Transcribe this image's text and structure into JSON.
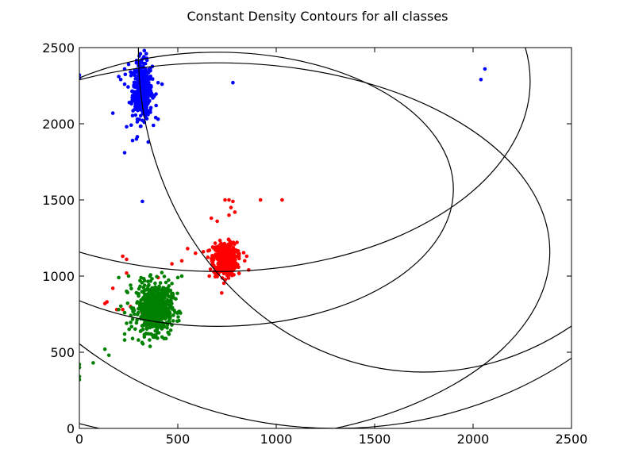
{
  "chart_data": {
    "type": "scatter",
    "title": "Constant Density Contours for all classes",
    "xlabel": "",
    "ylabel": "",
    "xlim": [
      0,
      2500
    ],
    "ylim": [
      0,
      2500
    ],
    "xticks": [
      0,
      500,
      1000,
      1500,
      2000,
      2500
    ],
    "yticks": [
      0,
      500,
      1000,
      1500,
      2000,
      2500
    ],
    "grid": false,
    "legend": "none",
    "series": [
      {
        "color": "#0000ff",
        "cluster": {
          "cx": 320,
          "cy": 2220,
          "sx": 25,
          "sy": 90,
          "n": 450
        },
        "points": [
          [
            0,
            2300
          ],
          [
            0,
            2320
          ],
          [
            170,
            2070
          ],
          [
            230,
            1810
          ],
          [
            240,
            1980
          ],
          [
            270,
            1890
          ],
          [
            290,
            1900
          ],
          [
            350,
            1880
          ],
          [
            320,
            1490
          ],
          [
            400,
            2030
          ],
          [
            330,
            2010
          ],
          [
            210,
            2290
          ],
          [
            200,
            2310
          ],
          [
            230,
            2260
          ],
          [
            230,
            2360
          ],
          [
            250,
            2390
          ],
          [
            290,
            2400
          ],
          [
            310,
            2460
          ],
          [
            330,
            2480
          ],
          [
            340,
            2460
          ],
          [
            420,
            2260
          ],
          [
            380,
            2180
          ],
          [
            390,
            2120
          ],
          [
            360,
            2090
          ],
          [
            780,
            2270
          ],
          [
            2040,
            2290
          ],
          [
            2060,
            2360
          ],
          [
            260,
            2340
          ],
          [
            400,
            2270
          ]
        ]
      },
      {
        "color": "#ff0000",
        "cluster": {
          "cx": 740,
          "cy": 1110,
          "sx": 30,
          "sy": 55,
          "n": 450
        },
        "cluster2": {
          "cx": 340,
          "cy": 760,
          "sx": 12,
          "sy": 30,
          "n": 40
        },
        "points": [
          [
            740,
            1500
          ],
          [
            760,
            1500
          ],
          [
            780,
            1490
          ],
          [
            920,
            1500
          ],
          [
            1030,
            1500
          ],
          [
            770,
            1450
          ],
          [
            790,
            1420
          ],
          [
            760,
            1400
          ],
          [
            670,
            1380
          ],
          [
            700,
            1360
          ],
          [
            550,
            1180
          ],
          [
            520,
            1100
          ],
          [
            470,
            1080
          ],
          [
            590,
            1150
          ],
          [
            630,
            1160
          ],
          [
            840,
            1100
          ],
          [
            860,
            1040
          ],
          [
            850,
            1130
          ],
          [
            220,
            1130
          ],
          [
            240,
            1110
          ],
          [
            240,
            1020
          ],
          [
            170,
            920
          ],
          [
            140,
            830
          ],
          [
            130,
            820
          ],
          [
            190,
            780
          ],
          [
            220,
            780
          ],
          [
            260,
            800
          ],
          [
            410,
            870
          ],
          [
            400,
            990
          ],
          [
            660,
            1000
          ],
          [
            690,
            1020
          ]
        ]
      },
      {
        "color": "#008000",
        "cluster": {
          "cx": 380,
          "cy": 790,
          "sx": 45,
          "sy": 80,
          "n": 650
        },
        "points": [
          [
            0,
            420
          ],
          [
            0,
            400
          ],
          [
            0,
            340
          ],
          [
            0,
            320
          ],
          [
            70,
            430
          ],
          [
            130,
            520
          ],
          [
            150,
            480
          ],
          [
            200,
            780
          ],
          [
            230,
            760
          ],
          [
            240,
            690
          ],
          [
            270,
            590
          ],
          [
            230,
            620
          ],
          [
            230,
            580
          ],
          [
            240,
            900
          ],
          [
            250,
            1000
          ],
          [
            260,
            940
          ],
          [
            470,
            870
          ],
          [
            490,
            850
          ],
          [
            500,
            990
          ],
          [
            520,
            1000
          ],
          [
            450,
            630
          ],
          [
            440,
            590
          ],
          [
            420,
            600
          ],
          [
            300,
            580
          ],
          [
            330,
            600
          ],
          [
            200,
            990
          ]
        ]
      }
    ],
    "contours": [
      {
        "color": "#000000",
        "cx": 700,
        "cy": 1570,
        "rx": 1200,
        "ry": 900
      },
      {
        "color": "#000000",
        "cx": 700,
        "cy": 1160,
        "rx": 1690,
        "ry": 1240
      },
      {
        "color": "#000000",
        "cx": 700,
        "cy": 2280,
        "rx": 1590,
        "ry": 1250
      },
      {
        "color": "#000000",
        "cx": 1750,
        "cy": 2470,
        "rx": 1450,
        "ry": 2100
      },
      {
        "color": "#000000",
        "cx": 1300,
        "cy": 2180,
        "rx": 1950,
        "ry": 2180
      }
    ]
  }
}
